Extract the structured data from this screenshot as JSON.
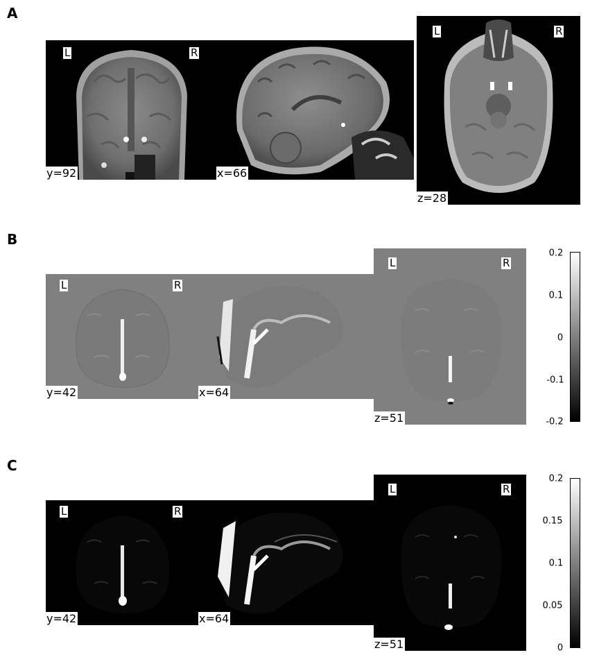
{
  "panels": {
    "A": {
      "letter": "A",
      "coronal": {
        "left": "L",
        "right": "R",
        "coord": "y=92"
      },
      "sagittal": {
        "coord": "x=66"
      },
      "axial": {
        "left": "L",
        "right": "R",
        "coord": "z=28"
      }
    },
    "B": {
      "letter": "B",
      "coronal": {
        "left": "L",
        "right": "R",
        "coord": "y=42"
      },
      "sagittal": {
        "coord": "x=64"
      },
      "axial": {
        "left": "L",
        "right": "R",
        "coord": "z=51"
      },
      "colorbar": {
        "ticks": [
          "0.2",
          "0.1",
          "0",
          "-0.1",
          "-0.2"
        ],
        "min": -0.2,
        "max": 0.2,
        "colormap": "gray"
      }
    },
    "C": {
      "letter": "C",
      "coronal": {
        "left": "L",
        "right": "R",
        "coord": "y=42"
      },
      "sagittal": {
        "coord": "x=64"
      },
      "axial": {
        "left": "L",
        "right": "R",
        "coord": "z=51"
      },
      "colorbar": {
        "ticks": [
          "0.2",
          "0.15",
          "0.1",
          "0.05",
          "0"
        ],
        "min": 0,
        "max": 0.2,
        "colormap": "gray"
      }
    }
  }
}
